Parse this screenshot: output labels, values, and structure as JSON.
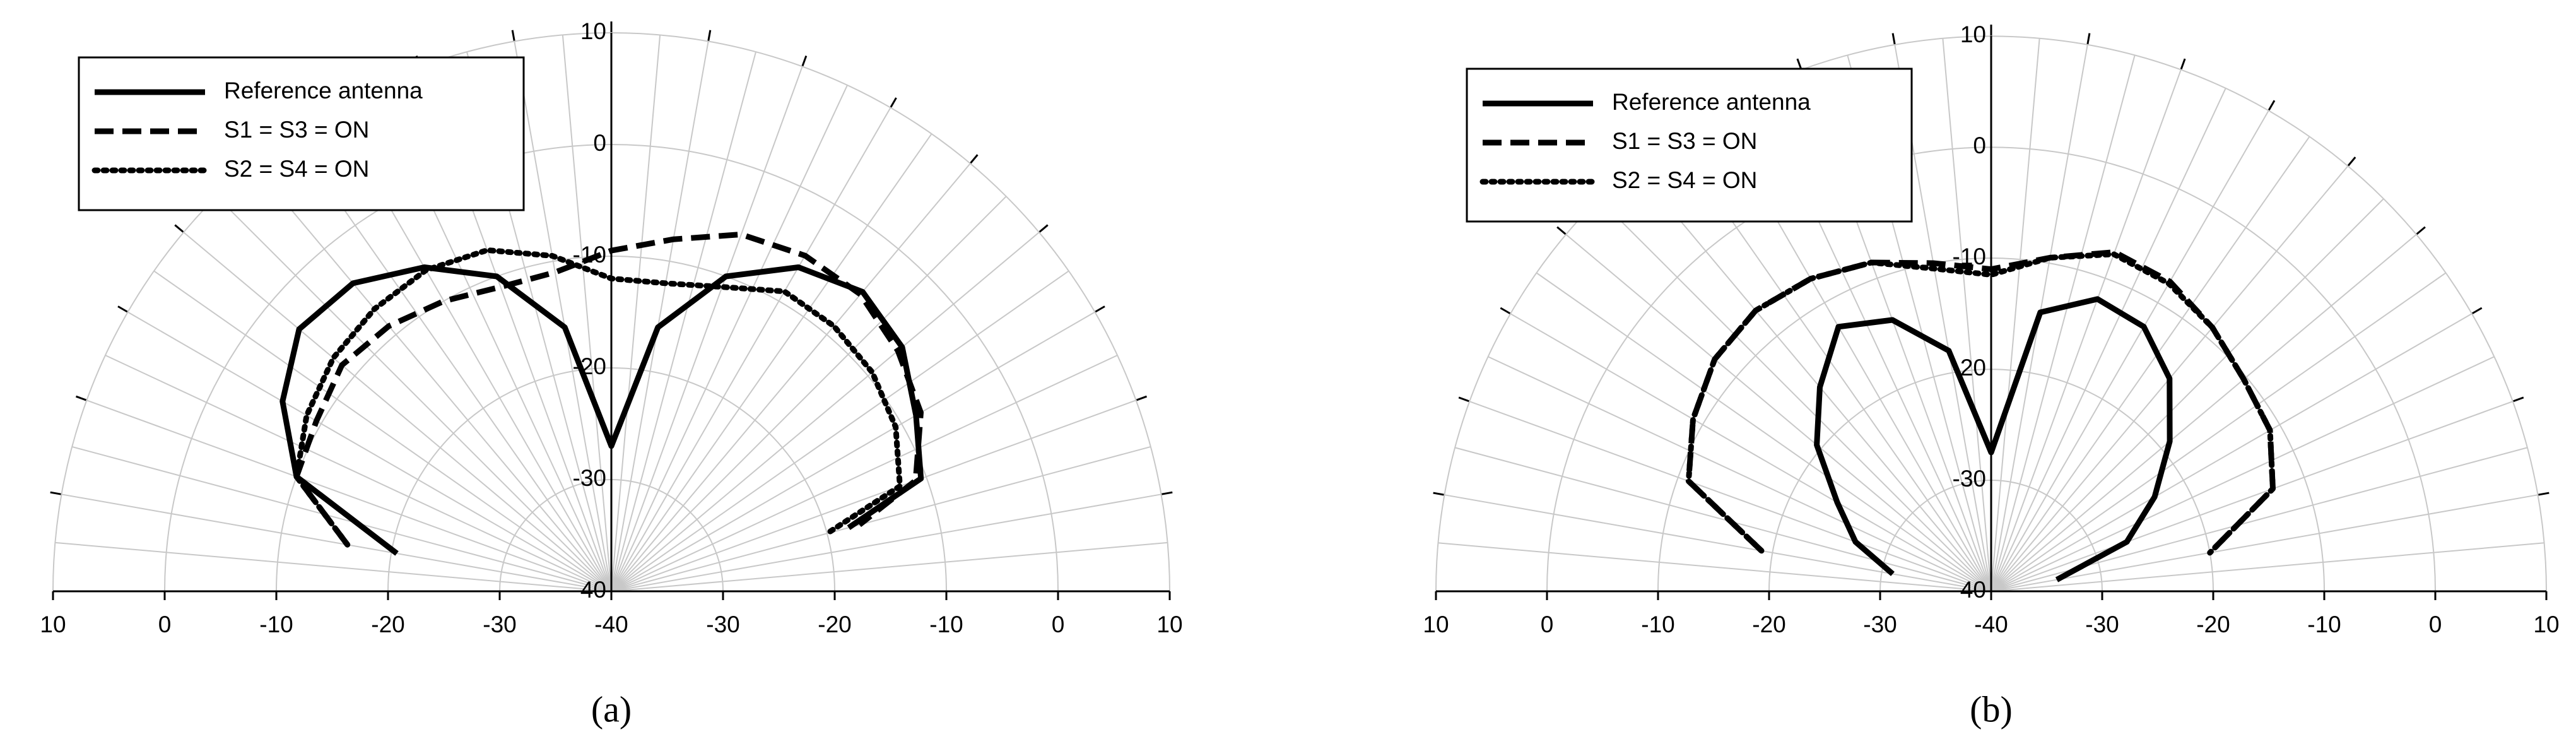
{
  "chart_data": [
    {
      "type": "polar",
      "label": "(a)",
      "rlim": [
        -40,
        10
      ],
      "rticks": [
        -40,
        -30,
        -20,
        -10,
        0,
        10
      ],
      "theta": [
        -80,
        -70,
        -60,
        -50,
        -40,
        -30,
        -20,
        -10,
        0,
        10,
        20,
        30,
        40,
        50,
        60,
        70,
        75
      ],
      "series": [
        {
          "name": "Reference antenna",
          "color": "#000000",
          "dash": "solid",
          "values": [
            -20.5,
            -10,
            -6,
            -3.5,
            -4,
            -6.5,
            -10,
            -16,
            -27,
            -16,
            -10,
            -6.5,
            -5,
            -6,
            -8.5,
            -10.5,
            -18
          ]
        },
        {
          "name": "S1 = S3 = ON",
          "color": "#000000",
          "dash": "dashed",
          "values": [
            -16,
            -10,
            -9.5,
            -8.5,
            -9,
            -10,
            -11,
            -11,
            -9.5,
            -8,
            -6,
            -5.3,
            -5.3,
            -6.5,
            -8,
            -11,
            -17
          ]
        },
        {
          "name": "S2 = S4 = ON",
          "color": "#000000",
          "dash": "dotted",
          "values": [
            -16,
            -10,
            -8.5,
            -7.5,
            -7,
            -6.8,
            -7.5,
            -9.5,
            -12,
            -12,
            -11,
            -9,
            -9,
            -9.5,
            -10.6,
            -12.5,
            -20
          ]
        }
      ]
    },
    {
      "type": "polar",
      "label": "(b)",
      "rlim": [
        -40,
        10
      ],
      "rticks": [
        -40,
        -30,
        -20,
        -10,
        0,
        10
      ],
      "theta": [
        -80,
        -70,
        -60,
        -50,
        -40,
        -30,
        -20,
        -10,
        0,
        10,
        20,
        30,
        40,
        50,
        60,
        70,
        80
      ],
      "series": [
        {
          "name": "Reference antenna",
          "color": "#000000",
          "dash": "solid",
          "values": [
            -31,
            -27,
            -24,
            -19.5,
            -16,
            -12.5,
            -14,
            -18,
            -27.5,
            -14.5,
            -12,
            -12.5,
            -15,
            -19,
            -23,
            -27,
            -34
          ]
        },
        {
          "name": "S1 = S3 = ON",
          "color": "#000000",
          "dash": "dashed",
          "values": [
            -19,
            -11,
            -9,
            -7.5,
            -7,
            -7.5,
            -8.5,
            -10,
            -11,
            -9.5,
            -7.5,
            -7.8,
            -9,
            -10.3,
            -11,
            -13,
            -20
          ]
        },
        {
          "name": "S2 = S4 = ON",
          "color": "#000000",
          "dash": "dotted",
          "values": [
            -19,
            -11,
            -9,
            -7.5,
            -7,
            -7.5,
            -8.5,
            -10.5,
            -11.5,
            -9.5,
            -7.7,
            -8,
            -9,
            -10.3,
            -11,
            -13,
            -20
          ]
        }
      ]
    }
  ]
}
